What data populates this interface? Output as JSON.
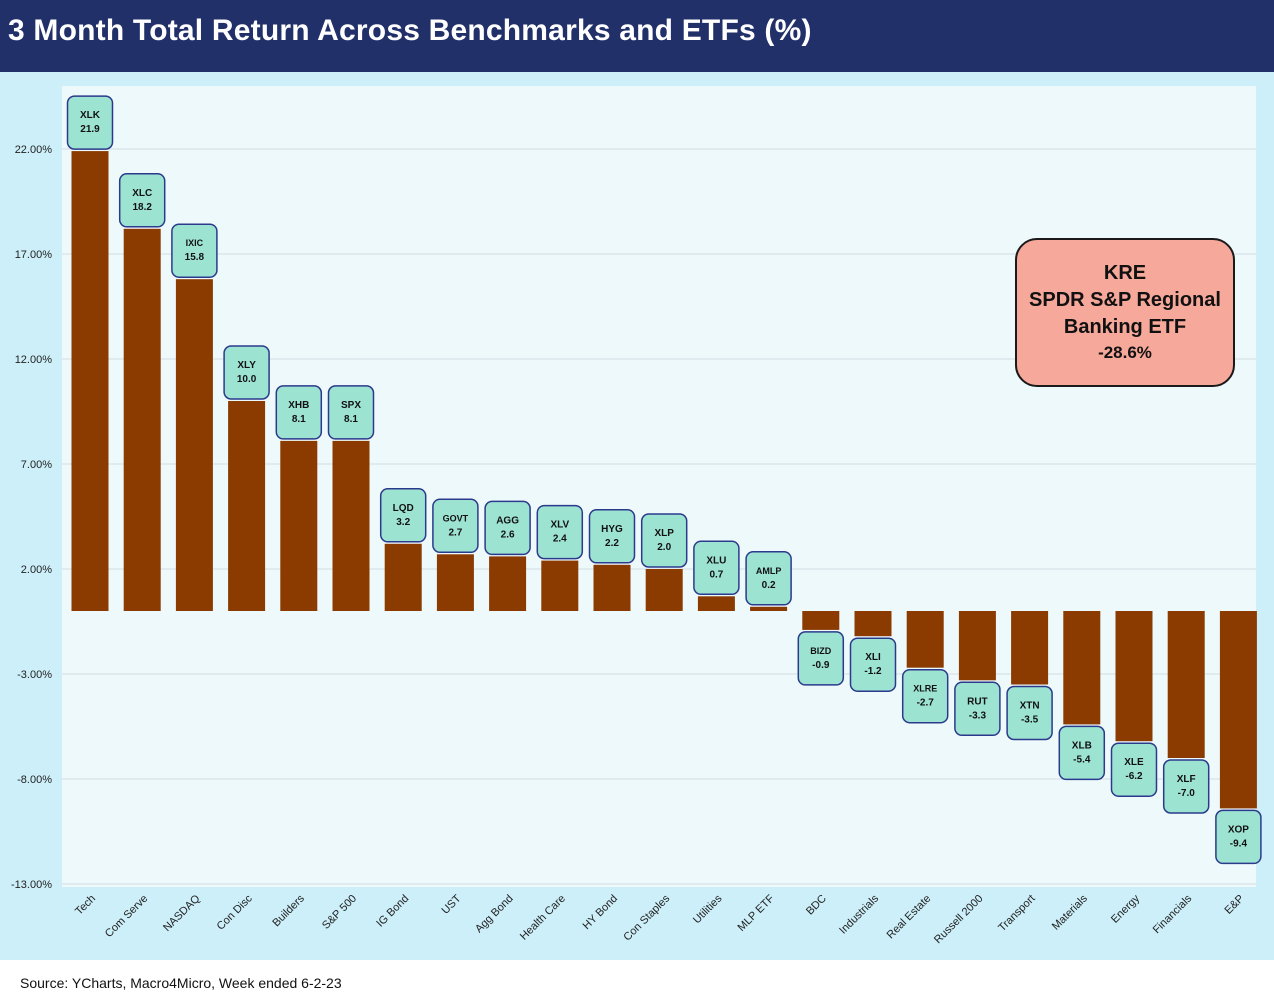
{
  "title": "3 Month Total Return Across Benchmarks and ETFs (%)",
  "footer": {
    "source": "Source: YCharts, Macro4Micro, Week ended 6-2-23"
  },
  "callout": {
    "ticker": "KRE",
    "line1": "SPDR S&P Regional",
    "line2": "Banking ETF",
    "value": "-28.6%"
  },
  "colors": {
    "bar": "#8b3a00",
    "label_box": "#9de3d2",
    "label_border": "#2b3a8c",
    "plot_bg": "#eef9fc",
    "outer_bg": "#cdeff9",
    "title_bg": "#22306a",
    "callout_bg": "#f6a89a"
  },
  "chart_data": {
    "type": "bar",
    "title": "3 Month Total Return Across Benchmarks and ETFs (%)",
    "xlabel": "",
    "ylabel": "",
    "ylim": [
      -13,
      24
    ],
    "yticks": [
      22,
      17,
      12,
      7,
      2,
      -3,
      -8,
      -13
    ],
    "ytick_labels": [
      "22.00%",
      "17.00%",
      "12.00%",
      "7.00%",
      "2.00%",
      "-3.00%",
      "-8.00%",
      "-13.00%"
    ],
    "grid": true,
    "categories": [
      "Tech",
      "Com Serve",
      "NASDAQ",
      "Con Disc",
      "Builders",
      "S&P 500",
      "IG Bond",
      "UST",
      "Agg Bond",
      "Health Care",
      "HY Bond",
      "Con Staples",
      "Utilities",
      "MLP ETF",
      "BDC",
      "Industrials",
      "Real Estate",
      "Russell 2000",
      "Transport",
      "Materials",
      "Energy",
      "Financials",
      "E&P"
    ],
    "tickers": [
      "XLK",
      "XLC",
      "IXIC",
      "XLY",
      "XHB",
      "SPX",
      "LQD",
      "GOVT",
      "AGG",
      "XLV",
      "HYG",
      "XLP",
      "XLU",
      "AMLP",
      "BIZD",
      "XLI",
      "XLRE",
      "RUT",
      "XTN",
      "XLB",
      "XLE",
      "XLF",
      "XOP"
    ],
    "value_labels": [
      "21.9",
      "18.2",
      "15.8",
      "10.0",
      "8.1",
      "8.1",
      "3.2",
      "2.7",
      "2.6",
      "2.4",
      "2.2",
      "2.0",
      "0.7",
      "0.2",
      "-0.9",
      "-1.2",
      "-2.7",
      "-3.3",
      "-3.5",
      "-5.4",
      "-6.2",
      "-7.0",
      "-9.4"
    ],
    "values": [
      21.9,
      18.2,
      15.8,
      10.0,
      8.1,
      8.1,
      3.2,
      2.7,
      2.6,
      2.4,
      2.2,
      2.0,
      0.7,
      0.2,
      -0.9,
      -1.2,
      -2.7,
      -3.3,
      -3.5,
      -5.4,
      -6.2,
      -7.0,
      -9.4
    ]
  }
}
